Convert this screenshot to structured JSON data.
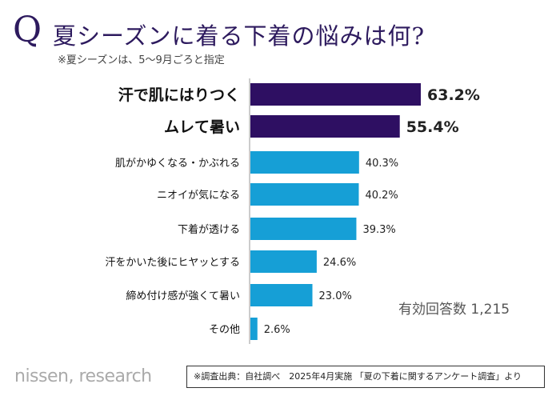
{
  "header": {
    "q": "Q",
    "title": "夏シーズンに着る下着の悩みは何?",
    "note": "※夏シーズンは、5〜9月ごろと指定"
  },
  "chart_data": {
    "type": "bar",
    "orientation": "horizontal",
    "categories": [
      "汗で肌にはりつく",
      "ムレて暑い",
      "肌がかゆくなる・かぶれる",
      "ニオイが気になる",
      "下着が透ける",
      "汗をかいた後にヒヤッとする",
      "締め付け感が強くて暑い",
      "その他"
    ],
    "values": [
      63.2,
      55.4,
      40.3,
      40.2,
      39.3,
      24.6,
      23.0,
      2.6
    ],
    "labels": [
      "63.2%",
      "55.4%",
      "40.3%",
      "40.2%",
      "39.3%",
      "24.6%",
      "23.0%",
      "2.6%"
    ],
    "highlight_count": 2,
    "colors": {
      "highlight": "#2e0f62",
      "normal": "#169fd6"
    },
    "grid": false
  },
  "respondents": "有効回答数 1,215",
  "logo": "nissen, research",
  "source": "※調査出典：自社調べ　2025年4月実施 「夏の下着に関するアンケート調査」より"
}
